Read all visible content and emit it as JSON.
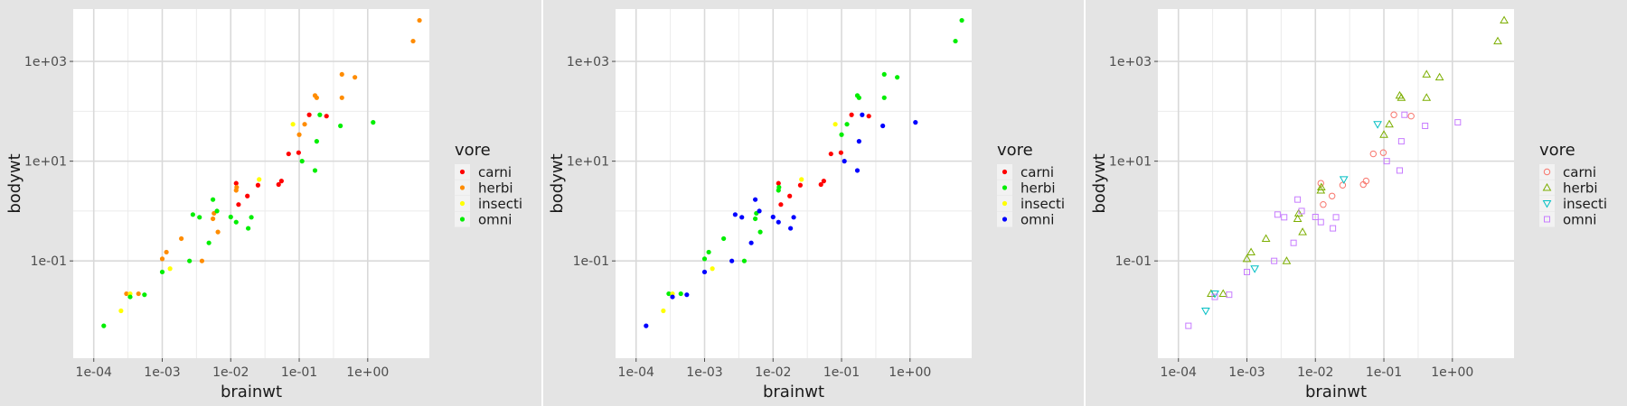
{
  "chart_data": [
    {
      "type": "scatter",
      "x_label": "brainwt",
      "y_label": "bodywt",
      "x_scale": "log10",
      "y_scale": "log10",
      "x_ticks": [
        "1e-04",
        "1e-03",
        "1e-02",
        "1e-01",
        "1e+00"
      ],
      "y_ticks": [
        "1e-01",
        "1e+01",
        "1e+03"
      ],
      "grid": true,
      "legend": {
        "title": "vore",
        "position": "right",
        "entries": [
          {
            "label": "carni",
            "color": "#ff0000",
            "shape": "circle-filled"
          },
          {
            "label": "herbi",
            "color": "#ff8c00",
            "shape": "circle-filled"
          },
          {
            "label": "insecti",
            "color": "#ffff00",
            "shape": "circle-filled"
          },
          {
            "label": "omni",
            "color": "#00ee00",
            "shape": "circle-filled"
          }
        ]
      }
    },
    {
      "type": "scatter",
      "x_label": "brainwt",
      "y_label": "bodywt",
      "x_scale": "log10",
      "y_scale": "log10",
      "x_ticks": [
        "1e-04",
        "1e-03",
        "1e-02",
        "1e-01",
        "1e+00"
      ],
      "y_ticks": [
        "1e-01",
        "1e+01",
        "1e+03"
      ],
      "grid": true,
      "legend": {
        "title": "vore",
        "position": "right",
        "entries": [
          {
            "label": "carni",
            "color": "#ff0000",
            "shape": "circle-filled"
          },
          {
            "label": "herbi",
            "color": "#00ee00",
            "shape": "circle-filled"
          },
          {
            "label": "insecti",
            "color": "#ffff00",
            "shape": "circle-filled"
          },
          {
            "label": "omni",
            "color": "#0000ff",
            "shape": "circle-filled"
          }
        ]
      }
    },
    {
      "type": "scatter",
      "x_label": "brainwt",
      "y_label": "bodywt",
      "x_scale": "log10",
      "y_scale": "log10",
      "x_ticks": [
        "1e-04",
        "1e-03",
        "1e-02",
        "1e-01",
        "1e+00"
      ],
      "y_ticks": [
        "1e-01",
        "1e+01",
        "1e+03"
      ],
      "grid": true,
      "legend": {
        "title": "vore",
        "position": "right",
        "entries": [
          {
            "label": "carni",
            "color": "#f8766d",
            "shape": "circle-open"
          },
          {
            "label": "herbi",
            "color": "#7cae00",
            "shape": "triangle-up-open"
          },
          {
            "label": "insecti",
            "color": "#00bfc4",
            "shape": "triangle-down-open"
          },
          {
            "label": "omni",
            "color": "#c77cff",
            "shape": "square-open"
          }
        ]
      }
    }
  ],
  "points": [
    {
      "x": 0.012,
      "y": 3.6,
      "vore": "carni"
    },
    {
      "x": 0.013,
      "y": 1.35,
      "vore": "carni"
    },
    {
      "x": 0.0175,
      "y": 2.0,
      "vore": "carni"
    },
    {
      "x": 0.025,
      "y": 3.3,
      "vore": "carni"
    },
    {
      "x": 0.05,
      "y": 3.4,
      "vore": "carni"
    },
    {
      "x": 0.055,
      "y": 4.0,
      "vore": "carni"
    },
    {
      "x": 0.07,
      "y": 14.0,
      "vore": "carni"
    },
    {
      "x": 0.098,
      "y": 14.8,
      "vore": "carni"
    },
    {
      "x": 0.14,
      "y": 85.0,
      "vore": "carni"
    },
    {
      "x": 0.25,
      "y": 80.0,
      "vore": "carni"
    },
    {
      "x": 0.0003,
      "y": 0.022,
      "vore": "herbi"
    },
    {
      "x": 0.00045,
      "y": 0.022,
      "vore": "herbi"
    },
    {
      "x": 0.001,
      "y": 0.11,
      "vore": "herbi"
    },
    {
      "x": 0.00115,
      "y": 0.15,
      "vore": "herbi"
    },
    {
      "x": 0.0019,
      "y": 0.28,
      "vore": "herbi"
    },
    {
      "x": 0.0038,
      "y": 0.1,
      "vore": "herbi"
    },
    {
      "x": 0.0055,
      "y": 0.7,
      "vore": "herbi"
    },
    {
      "x": 0.0057,
      "y": 0.9,
      "vore": "herbi"
    },
    {
      "x": 0.0065,
      "y": 0.38,
      "vore": "herbi"
    },
    {
      "x": 0.012,
      "y": 2.6,
      "vore": "herbi"
    },
    {
      "x": 0.0122,
      "y": 3.0,
      "vore": "herbi"
    },
    {
      "x": 0.1,
      "y": 34.0,
      "vore": "herbi"
    },
    {
      "x": 0.12,
      "y": 55.0,
      "vore": "herbi"
    },
    {
      "x": 0.17,
      "y": 207.0,
      "vore": "herbi"
    },
    {
      "x": 0.18,
      "y": 187.0,
      "vore": "herbi"
    },
    {
      "x": 0.42,
      "y": 187.0,
      "vore": "herbi"
    },
    {
      "x": 0.42,
      "y": 550.0,
      "vore": "herbi"
    },
    {
      "x": 0.65,
      "y": 480.0,
      "vore": "herbi"
    },
    {
      "x": 4.6,
      "y": 2550.0,
      "vore": "herbi"
    },
    {
      "x": 5.7,
      "y": 6650.0,
      "vore": "herbi"
    },
    {
      "x": 0.00025,
      "y": 0.01,
      "vore": "insecti"
    },
    {
      "x": 0.00034,
      "y": 0.022,
      "vore": "insecti"
    },
    {
      "x": 0.0013,
      "y": 0.07,
      "vore": "insecti"
    },
    {
      "x": 0.026,
      "y": 4.3,
      "vore": "insecti"
    },
    {
      "x": 0.081,
      "y": 55.0,
      "vore": "insecti"
    },
    {
      "x": 0.00014,
      "y": 0.005,
      "vore": "omni"
    },
    {
      "x": 0.00034,
      "y": 0.019,
      "vore": "omni"
    },
    {
      "x": 0.00055,
      "y": 0.021,
      "vore": "omni"
    },
    {
      "x": 0.001,
      "y": 0.06,
      "vore": "omni"
    },
    {
      "x": 0.0025,
      "y": 0.1,
      "vore": "omni"
    },
    {
      "x": 0.0028,
      "y": 0.85,
      "vore": "omni"
    },
    {
      "x": 0.0035,
      "y": 0.75,
      "vore": "omni"
    },
    {
      "x": 0.0048,
      "y": 0.23,
      "vore": "omni"
    },
    {
      "x": 0.0055,
      "y": 1.7,
      "vore": "omni"
    },
    {
      "x": 0.0063,
      "y": 1.0,
      "vore": "omni"
    },
    {
      "x": 0.01,
      "y": 0.76,
      "vore": "omni"
    },
    {
      "x": 0.012,
      "y": 0.6,
      "vore": "omni"
    },
    {
      "x": 0.018,
      "y": 0.45,
      "vore": "omni"
    },
    {
      "x": 0.02,
      "y": 0.75,
      "vore": "omni"
    },
    {
      "x": 0.11,
      "y": 10.0,
      "vore": "omni"
    },
    {
      "x": 0.17,
      "y": 6.5,
      "vore": "omni"
    },
    {
      "x": 0.18,
      "y": 25.0,
      "vore": "omni"
    },
    {
      "x": 0.4,
      "y": 51.0,
      "vore": "omni"
    },
    {
      "x": 1.2,
      "y": 60.0,
      "vore": "omni"
    },
    {
      "x": 0.2,
      "y": 85.0,
      "vore": "omni"
    }
  ]
}
